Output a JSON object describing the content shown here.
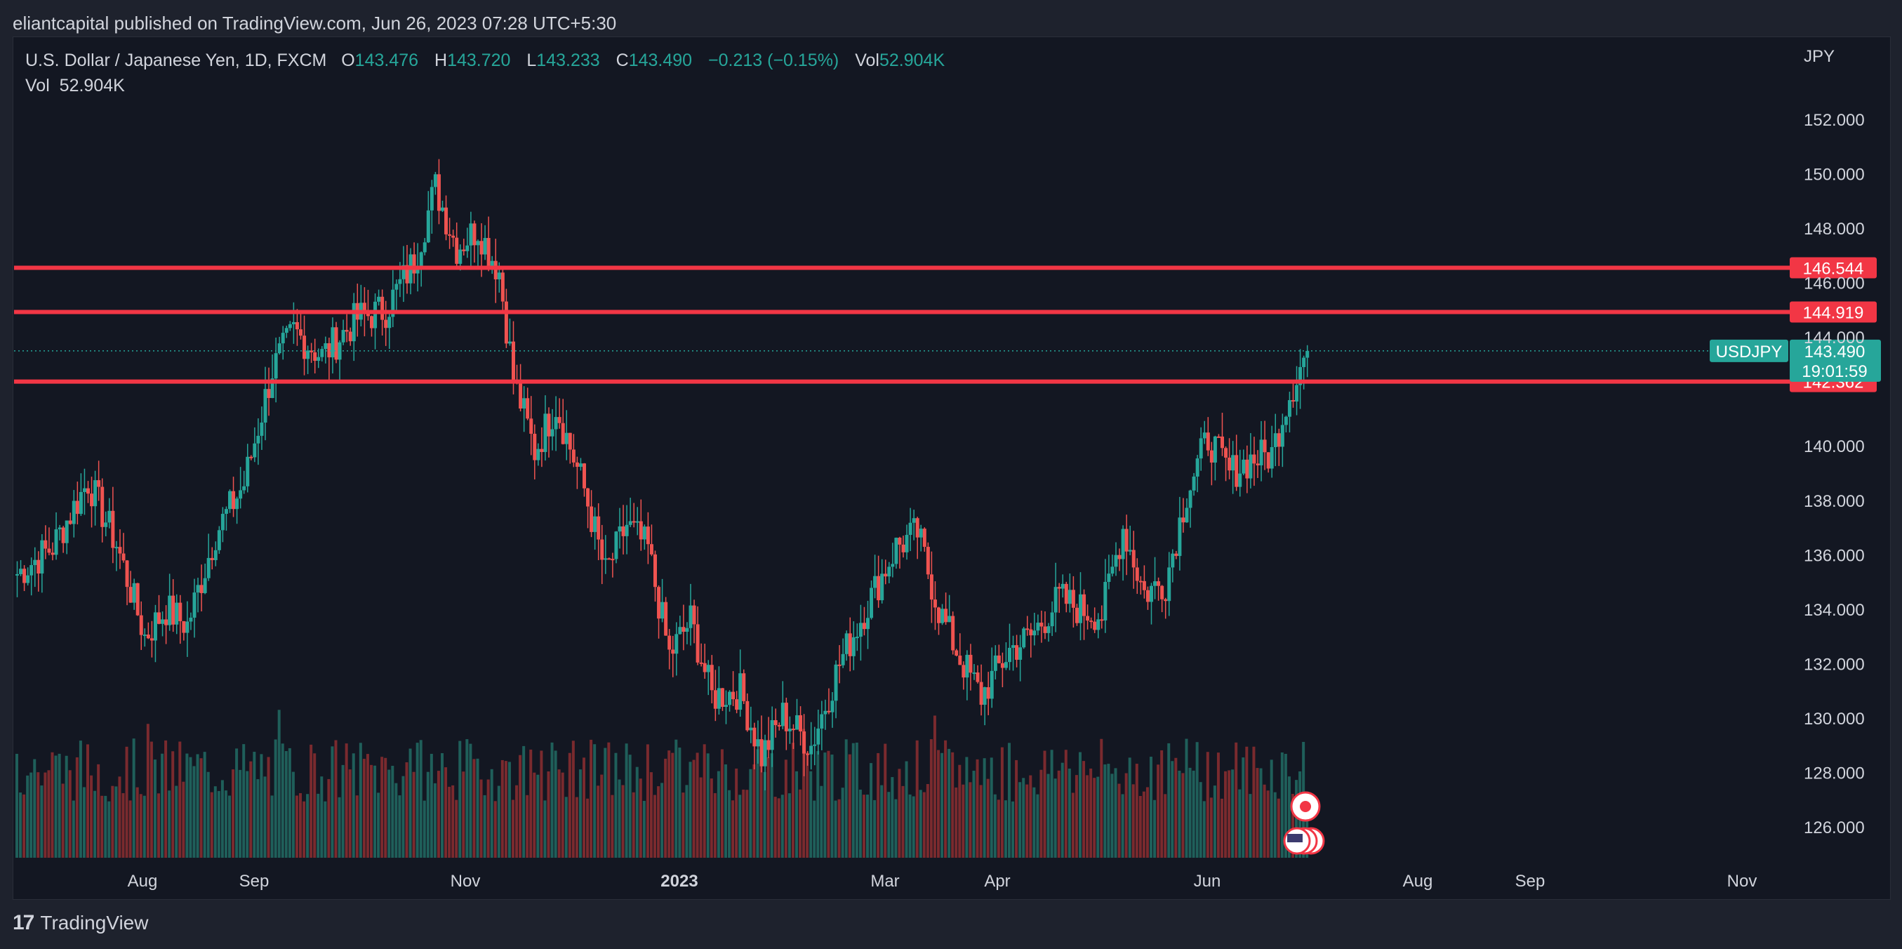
{
  "header": {
    "published": "eliantcapital published on TradingView.com, Jun 26, 2023 07:28 UTC+5:30"
  },
  "legend": {
    "symbol": "U.S. Dollar / Japanese Yen, 1D, FXCM",
    "o_label": "O",
    "o": "143.476",
    "h_label": "H",
    "h": "143.720",
    "l_label": "L",
    "l": "143.233",
    "c_label": "C",
    "c": "143.490",
    "change": "−0.213 (−0.15%)",
    "vol_label": "Vol",
    "vol": "52.904K"
  },
  "legend2": {
    "vol_label": "Vol",
    "vol": "52.904K"
  },
  "footer": {
    "brand": "TradingView"
  },
  "colors": {
    "up": "#26a69a",
    "down": "#ef5350",
    "level": "#f23645",
    "bg": "#131722",
    "text": "#d1d4dc"
  },
  "chart_data": {
    "type": "candlestick",
    "currency_label": "JPY",
    "ylim": [
      125,
      153
    ],
    "y_ticks": [
      "152.000",
      "150.000",
      "148.000",
      "146.000",
      "144.000",
      "140.000",
      "138.000",
      "136.000",
      "134.000",
      "132.000",
      "130.000",
      "128.000",
      "126.000"
    ],
    "x_ticks": [
      "Aug",
      "Sep",
      "Nov",
      "2023",
      "Mar",
      "Apr",
      "Jun",
      "Aug",
      "Sep",
      "Nov"
    ],
    "levels": [
      {
        "value": 146.544,
        "label": "146.544"
      },
      {
        "value": 144.919,
        "label": "144.919"
      },
      {
        "value": 142.362,
        "label": "142.362"
      }
    ],
    "last_price": {
      "symbol": "USDJPY",
      "value": 143.49,
      "label": "143.490",
      "countdown": "19:01:59"
    },
    "ohlc_anchors": [
      {
        "t": 0,
        "c": 135.3
      },
      {
        "t": 10,
        "c": 136.3
      },
      {
        "t": 20,
        "c": 138.7
      },
      {
        "t": 28,
        "c": 136.4
      },
      {
        "t": 36,
        "c": 133.0
      },
      {
        "t": 42,
        "c": 134.0
      },
      {
        "t": 48,
        "c": 133.4
      },
      {
        "t": 56,
        "c": 136.8
      },
      {
        "t": 64,
        "c": 138.6
      },
      {
        "t": 72,
        "c": 142.8
      },
      {
        "t": 78,
        "c": 144.2
      },
      {
        "t": 86,
        "c": 143.3
      },
      {
        "t": 96,
        "c": 144.7
      },
      {
        "t": 104,
        "c": 145.0
      },
      {
        "t": 112,
        "c": 146.8
      },
      {
        "t": 118,
        "c": 149.5
      },
      {
        "t": 124,
        "c": 147.3
      },
      {
        "t": 130,
        "c": 148.0
      },
      {
        "t": 136,
        "c": 146.4
      },
      {
        "t": 140,
        "c": 142.5
      },
      {
        "t": 146,
        "c": 139.8
      },
      {
        "t": 152,
        "c": 141.5
      },
      {
        "t": 160,
        "c": 138.4
      },
      {
        "t": 166,
        "c": 135.3
      },
      {
        "t": 172,
        "c": 137.1
      },
      {
        "t": 178,
        "c": 136.2
      },
      {
        "t": 184,
        "c": 132.3
      },
      {
        "t": 190,
        "c": 133.6
      },
      {
        "t": 196,
        "c": 130.8
      },
      {
        "t": 204,
        "c": 131.0
      },
      {
        "t": 210,
        "c": 128.6
      },
      {
        "t": 216,
        "c": 130.1
      },
      {
        "t": 224,
        "c": 129.0
      },
      {
        "t": 232,
        "c": 132.0
      },
      {
        "t": 240,
        "c": 134.2
      },
      {
        "t": 248,
        "c": 136.3
      },
      {
        "t": 254,
        "c": 136.8
      },
      {
        "t": 260,
        "c": 134.0
      },
      {
        "t": 266,
        "c": 132.2
      },
      {
        "t": 272,
        "c": 130.8
      },
      {
        "t": 280,
        "c": 132.5
      },
      {
        "t": 286,
        "c": 133.0
      },
      {
        "t": 294,
        "c": 134.4
      },
      {
        "t": 300,
        "c": 134.0
      },
      {
        "t": 306,
        "c": 133.8
      },
      {
        "t": 312,
        "c": 137.0
      },
      {
        "t": 318,
        "c": 134.6
      },
      {
        "t": 324,
        "c": 135.0
      },
      {
        "t": 330,
        "c": 138.3
      },
      {
        "t": 336,
        "c": 140.3
      },
      {
        "t": 342,
        "c": 139.0
      },
      {
        "t": 348,
        "c": 139.5
      },
      {
        "t": 354,
        "c": 139.7
      },
      {
        "t": 358,
        "c": 141.6
      },
      {
        "t": 362,
        "c": 142.9
      },
      {
        "t": 364,
        "c": 143.49
      }
    ]
  }
}
